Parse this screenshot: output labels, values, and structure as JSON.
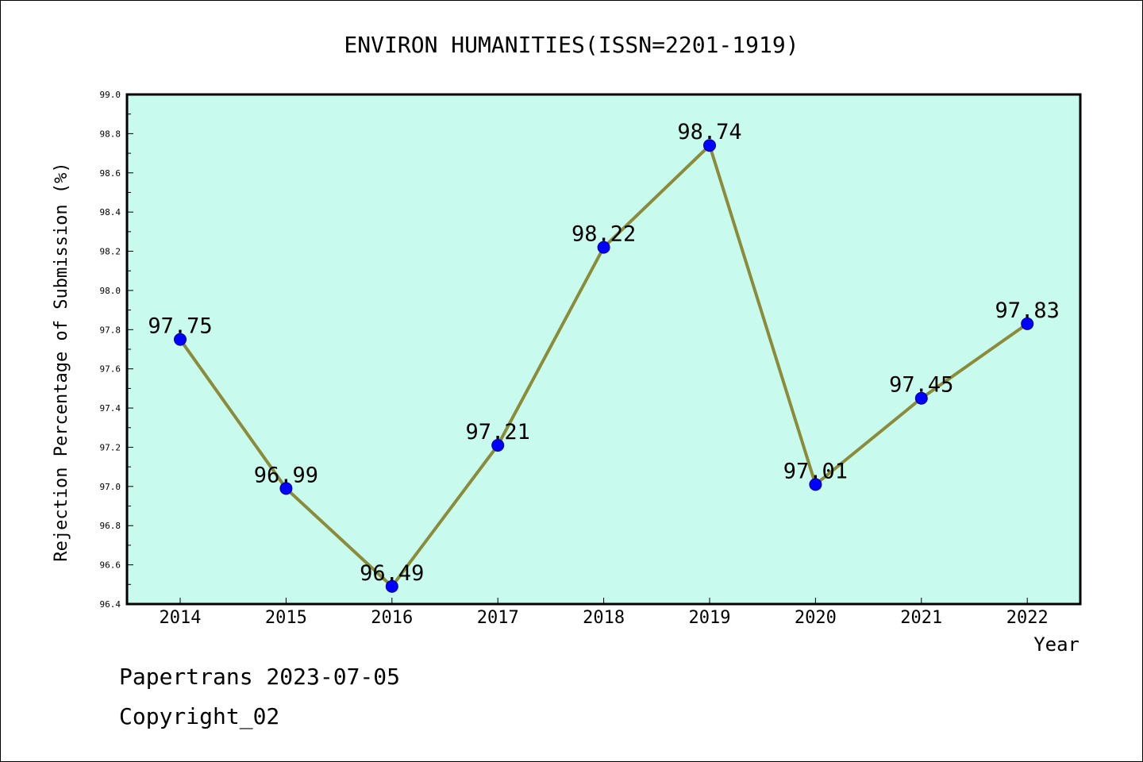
{
  "chart_data": {
    "type": "line",
    "title": "ENVIRON HUMANITIES(ISSN=2201-1919)",
    "xlabel": "Year",
    "ylabel": "Rejection Percentage of Submission (%)",
    "categories": [
      "2014",
      "2015",
      "2016",
      "2017",
      "2018",
      "2019",
      "2020",
      "2021",
      "2022"
    ],
    "values": [
      97.75,
      96.99,
      96.49,
      97.21,
      98.22,
      98.74,
      97.01,
      97.45,
      97.83
    ],
    "value_labels": [
      "97.75",
      "96.99",
      "96.49",
      "97.21",
      "98.22",
      "98.74",
      "97.01",
      "97.45",
      "97.83"
    ],
    "ylim": [
      96.4,
      99.0
    ],
    "yticks": [
      "96.4",
      "96.6",
      "96.8",
      "97.0",
      "97.2",
      "97.4",
      "97.6",
      "97.8",
      "98.0",
      "98.2",
      "98.4",
      "98.6",
      "98.8",
      "99.0"
    ],
    "grid": false,
    "plot_background": "#c8fbee",
    "line_color": "#8b8b3a",
    "marker_color": "#0000ff"
  },
  "footer": {
    "line1": "Papertrans 2023-07-05",
    "line2": "Copyright_02"
  }
}
